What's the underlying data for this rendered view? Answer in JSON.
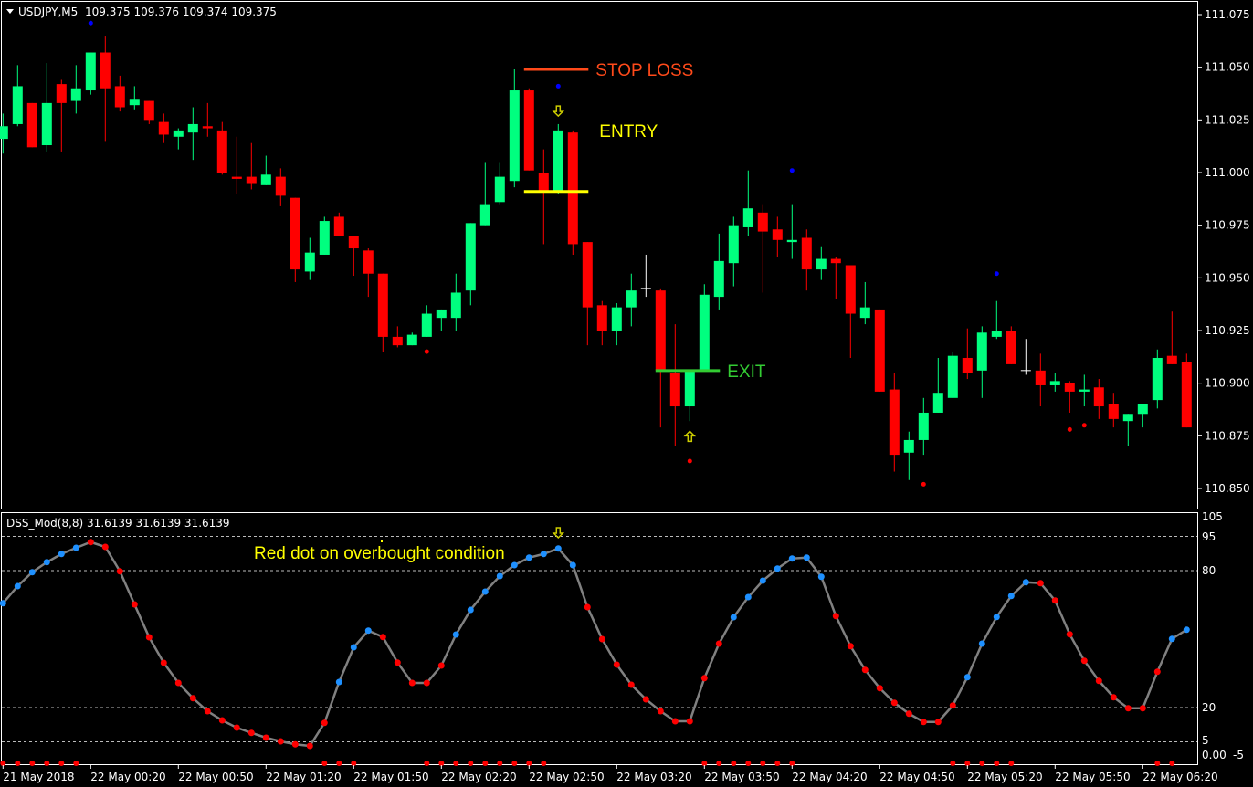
{
  "window": {
    "symbol_label": "USDJPY,M5",
    "ohlc_readout": "109.375 109.376 109.374 109.375"
  },
  "colors": {
    "background": "#000000",
    "bull_candle": "#00ff7f",
    "bear_candle": "#ff0000",
    "doji_candle": "#ffffff",
    "fractal_up_dot": "#0000ff",
    "fractal_down_dot": "#ff0000",
    "stop_loss": "#ff4a1a",
    "entry": "#ffff00",
    "exit": "#33cc33",
    "dss_line": "#808080",
    "dss_rising_dot": "#1e90ff",
    "dss_falling_dot": "#ff0000",
    "arrow": "#cccc00"
  },
  "chart_data": [
    {
      "type": "candlestick",
      "symbol": "USDJPY",
      "timeframe": "M5",
      "ylim": [
        110.837,
        111.082
      ],
      "y_ticks": [
        "111.075",
        "111.050",
        "111.025",
        "111.000",
        "110.975",
        "110.950",
        "110.925",
        "110.900",
        "110.875",
        "110.850"
      ],
      "x_tick_labels": [
        "21 May 2018",
        "22 May 00:20",
        "22 May 00:50",
        "22 May 01:20",
        "22 May 01:50",
        "22 May 02:20",
        "22 May 02:50",
        "22 May 03:20",
        "22 May 03:50",
        "22 May 04:20",
        "22 May 04:50",
        "22 May 05:20",
        "22 May 05:50",
        "22 May 06:20"
      ],
      "ohlc": [
        [
          111.016,
          111.028,
          111.009,
          111.022
        ],
        [
          111.023,
          111.051,
          111.022,
          111.041
        ],
        [
          111.033,
          111.033,
          111.012,
          111.012
        ],
        [
          111.013,
          111.052,
          111.01,
          111.033
        ],
        [
          111.042,
          111.044,
          111.01,
          111.033
        ],
        [
          111.034,
          111.051,
          111.028,
          111.04
        ],
        [
          111.039,
          111.057,
          111.037,
          111.057
        ],
        [
          111.057,
          111.065,
          111.015,
          111.04
        ],
        [
          111.041,
          111.046,
          111.029,
          111.031
        ],
        [
          111.032,
          111.041,
          111.03,
          111.035
        ],
        [
          111.034,
          111.034,
          111.023,
          111.025
        ],
        [
          111.024,
          111.028,
          111.014,
          111.018
        ],
        [
          111.017,
          111.021,
          111.011,
          111.02
        ],
        [
          111.019,
          111.031,
          111.006,
          111.023
        ],
        [
          111.022,
          111.033,
          111.017,
          111.021
        ],
        [
          111.02,
          111.024,
          110.999,
          111.0
        ],
        [
          110.998,
          111.017,
          110.99,
          110.997
        ],
        [
          110.998,
          111.014,
          110.992,
          110.995
        ],
        [
          110.994,
          111.008,
          110.994,
          110.999
        ],
        [
          110.998,
          111.002,
          110.984,
          110.989
        ],
        [
          110.988,
          110.988,
          110.948,
          110.954
        ],
        [
          110.953,
          110.969,
          110.949,
          110.962
        ],
        [
          110.961,
          110.979,
          110.961,
          110.977
        ],
        [
          110.979,
          110.981,
          110.97,
          110.97
        ],
        [
          110.97,
          110.97,
          110.951,
          110.964
        ],
        [
          110.963,
          110.964,
          110.941,
          110.952
        ],
        [
          110.952,
          110.952,
          110.915,
          110.922
        ],
        [
          110.922,
          110.927,
          110.917,
          110.918
        ],
        [
          110.918,
          110.924,
          110.918,
          110.923
        ],
        [
          110.922,
          110.937,
          110.922,
          110.933
        ],
        [
          110.931,
          110.935,
          110.925,
          110.935
        ],
        [
          110.931,
          110.952,
          110.925,
          110.943
        ],
        [
          110.944,
          110.976,
          110.937,
          110.976
        ],
        [
          110.975,
          111.005,
          110.975,
          110.985
        ],
        [
          110.986,
          111.005,
          110.985,
          110.998
        ],
        [
          110.996,
          111.049,
          110.993,
          111.039
        ],
        [
          111.039,
          111.04,
          111.001,
          111.001
        ],
        [
          111.0,
          111.011,
          110.966,
          110.991
        ],
        [
          110.991,
          111.023,
          110.99,
          111.02
        ],
        [
          111.019,
          111.02,
          110.961,
          110.966
        ],
        [
          110.967,
          110.967,
          110.918,
          110.936
        ],
        [
          110.937,
          110.939,
          110.918,
          110.925
        ],
        [
          110.925,
          110.938,
          110.918,
          110.936
        ],
        [
          110.936,
          110.952,
          110.927,
          110.944
        ],
        [
          110.945,
          110.961,
          110.941,
          110.945
        ],
        [
          110.944,
          110.945,
          110.879,
          110.906
        ],
        [
          110.905,
          110.928,
          110.87,
          110.889
        ],
        [
          110.889,
          110.906,
          110.882,
          110.906
        ],
        [
          110.906,
          110.947,
          110.906,
          110.942
        ],
        [
          110.941,
          110.971,
          110.935,
          110.958
        ],
        [
          110.957,
          110.979,
          110.946,
          110.975
        ],
        [
          110.974,
          111.001,
          110.97,
          110.983
        ],
        [
          110.981,
          110.985,
          110.943,
          110.972
        ],
        [
          110.973,
          110.979,
          110.96,
          110.968
        ],
        [
          110.967,
          110.985,
          110.959,
          110.968
        ],
        [
          110.969,
          110.973,
          110.944,
          110.954
        ],
        [
          110.954,
          110.965,
          110.949,
          110.959
        ],
        [
          110.959,
          110.96,
          110.94,
          110.957
        ],
        [
          110.956,
          110.956,
          110.912,
          110.933
        ],
        [
          110.931,
          110.948,
          110.928,
          110.936
        ],
        [
          110.935,
          110.935,
          110.896,
          110.896
        ],
        [
          110.897,
          110.905,
          110.858,
          110.866
        ],
        [
          110.867,
          110.877,
          110.854,
          110.873
        ],
        [
          110.873,
          110.893,
          110.866,
          110.886
        ],
        [
          110.886,
          110.912,
          110.886,
          110.895
        ],
        [
          110.893,
          110.915,
          110.893,
          110.913
        ],
        [
          110.912,
          110.926,
          110.902,
          110.905
        ],
        [
          110.906,
          110.927,
          110.893,
          110.924
        ],
        [
          110.922,
          110.939,
          110.921,
          110.925
        ],
        [
          110.925,
          110.927,
          110.909,
          110.909
        ],
        [
          110.906,
          110.921,
          110.904,
          110.906
        ],
        [
          110.906,
          110.914,
          110.889,
          110.899
        ],
        [
          110.899,
          110.905,
          110.896,
          110.901
        ],
        [
          110.9,
          110.901,
          110.886,
          110.896
        ],
        [
          110.896,
          110.904,
          110.889,
          110.897
        ],
        [
          110.898,
          110.902,
          110.883,
          110.889
        ],
        [
          110.89,
          110.895,
          110.879,
          110.883
        ],
        [
          110.882,
          110.885,
          110.87,
          110.885
        ],
        [
          110.885,
          110.89,
          110.879,
          110.89
        ],
        [
          110.892,
          110.916,
          110.888,
          110.912
        ],
        [
          110.913,
          110.934,
          110.909,
          110.909
        ],
        [
          110.91,
          110.914,
          110.879,
          110.879
        ]
      ],
      "fractal_up": [
        {
          "bar": 6,
          "price": 111.071
        },
        {
          "bar": 38,
          "price": 111.041
        },
        {
          "bar": 54,
          "price": 111.001
        },
        {
          "bar": 68,
          "price": 110.952
        }
      ],
      "fractal_down": [
        {
          "bar": 29,
          "price": 110.915
        },
        {
          "bar": 47,
          "price": 110.863
        },
        {
          "bar": 63,
          "price": 110.852
        },
        {
          "bar": 73,
          "price": 110.878
        },
        {
          "bar": 74,
          "price": 110.88
        }
      ],
      "arrows": [
        {
          "bar": 38,
          "price": 111.029,
          "direction": "down"
        },
        {
          "bar": 47,
          "price": 110.875,
          "direction": "up"
        }
      ],
      "levels": [
        {
          "label": "STOP LOSS",
          "price": 111.049,
          "from_bar": 36,
          "to_bar": 40,
          "color_key": "stop_loss"
        },
        {
          "label": "ENTRY",
          "price": 110.991,
          "from_bar": 36,
          "to_bar": 40,
          "color_key": "entry"
        },
        {
          "label": "EXIT",
          "price": 110.906,
          "from_bar": 45,
          "to_bar": 49,
          "color_key": "exit"
        }
      ]
    },
    {
      "type": "line",
      "title": "DSS_Mod(8,8) 31.6139 31.6139 31.6139",
      "ylim": [
        -5,
        105
      ],
      "y_tick_labels": [
        "105",
        "95",
        "80",
        "20",
        "5",
        "0.00",
        "-5"
      ],
      "levels": [
        95,
        80,
        20,
        5
      ],
      "annotation": "Red dot on overbought condition",
      "values": [
        65.7,
        73.2,
        79.3,
        83.7,
        87.3,
        90.0,
        92.5,
        90.4,
        79.7,
        65.2,
        50.8,
        39.6,
        30.8,
        24.1,
        18.4,
        14.4,
        11.2,
        8.9,
        6.8,
        5.2,
        3.9,
        3.2,
        13.3,
        31.2,
        46.4,
        53.7,
        50.9,
        39.7,
        30.8,
        30.8,
        38.4,
        52.0,
        62.8,
        70.8,
        77.6,
        82.4,
        85.7,
        87.3,
        89.7,
        82.4,
        64.0,
        50.0,
        38.8,
        30.0,
        23.6,
        18.4,
        14.0,
        14.0,
        32.9,
        48.0,
        59.6,
        68.4,
        75.6,
        80.9,
        85.3,
        85.7,
        77.3,
        60.1,
        46.9,
        36.5,
        28.5,
        22.1,
        17.3,
        13.7,
        13.7,
        20.9,
        33.3,
        48.0,
        59.7,
        68.9,
        74.9,
        74.5,
        66.9,
        52.1,
        40.5,
        31.7,
        24.5,
        19.7,
        19.7,
        35.7,
        50.1,
        54.1
      ],
      "dot_state": "rrrrrrfffffffffffffffffrrrfffffrrrrrrrrrffffffffffrrrrrrrfffffffffrrrrrfffffffffrrf",
      "bottom_dots_bars": [
        0,
        1,
        2,
        3,
        4,
        5,
        22,
        23,
        24,
        29,
        30,
        31,
        32,
        33,
        34,
        35,
        36,
        37,
        48,
        49,
        50,
        51,
        52,
        53,
        54,
        65,
        66,
        67,
        68,
        69,
        79,
        80
      ],
      "arrow_bar": 38
    }
  ]
}
